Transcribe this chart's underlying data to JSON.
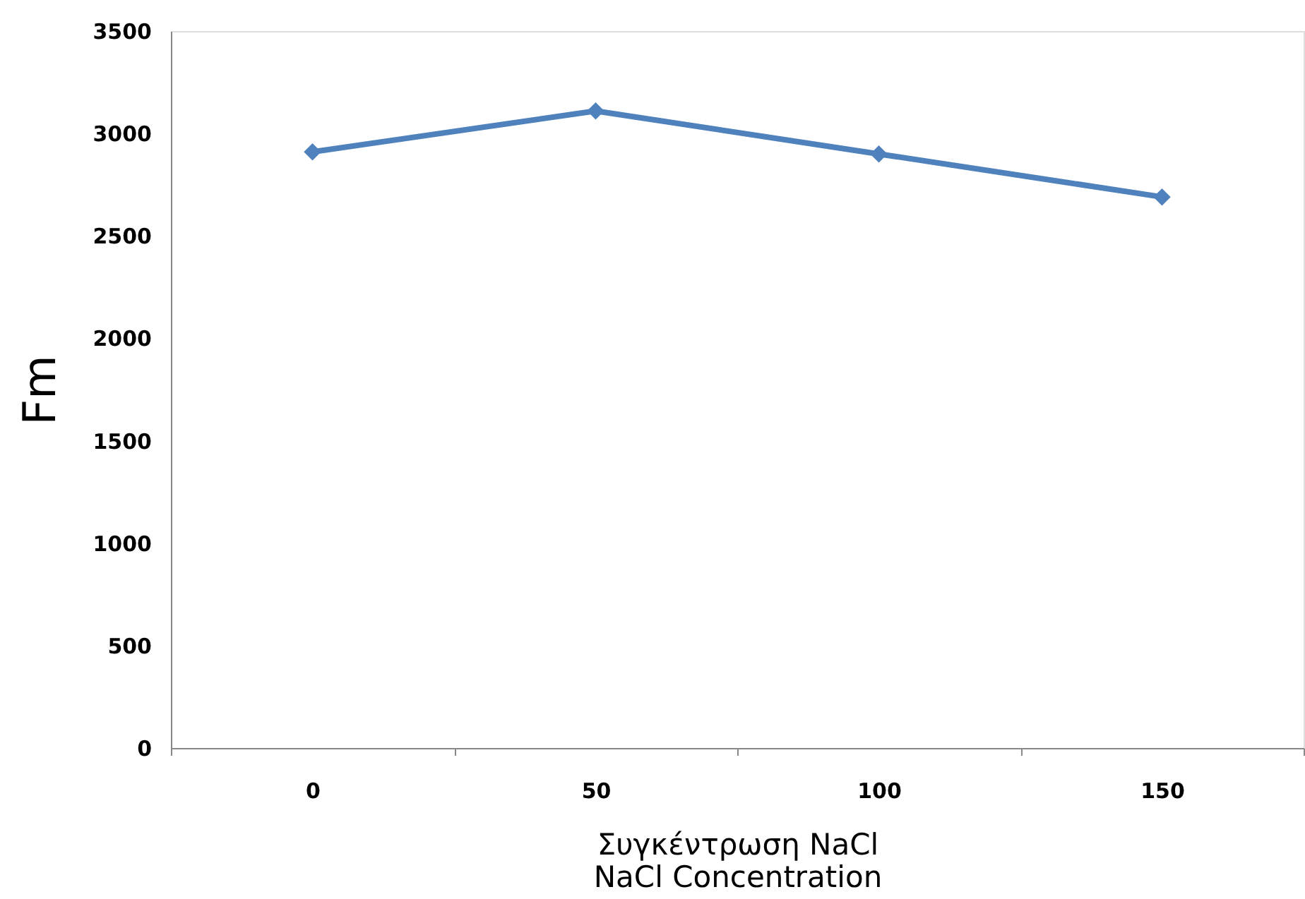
{
  "chart_data": {
    "type": "line",
    "xlabel": "Συγκέντρωση NaCl\nNaCl Concentration",
    "ylabel": "Fm",
    "categories": [
      "0",
      "50",
      "100",
      "150"
    ],
    "series": [
      {
        "color": "#4f81bd",
        "values": [
          2910,
          3110,
          2900,
          2690
        ]
      }
    ],
    "ylim": [
      0,
      3500
    ],
    "yticks": [
      0,
      500,
      1000,
      1500,
      2000,
      2500,
      3000,
      3500
    ],
    "marker": "diamond",
    "line_style": "solid",
    "grid": false,
    "legend": false
  }
}
